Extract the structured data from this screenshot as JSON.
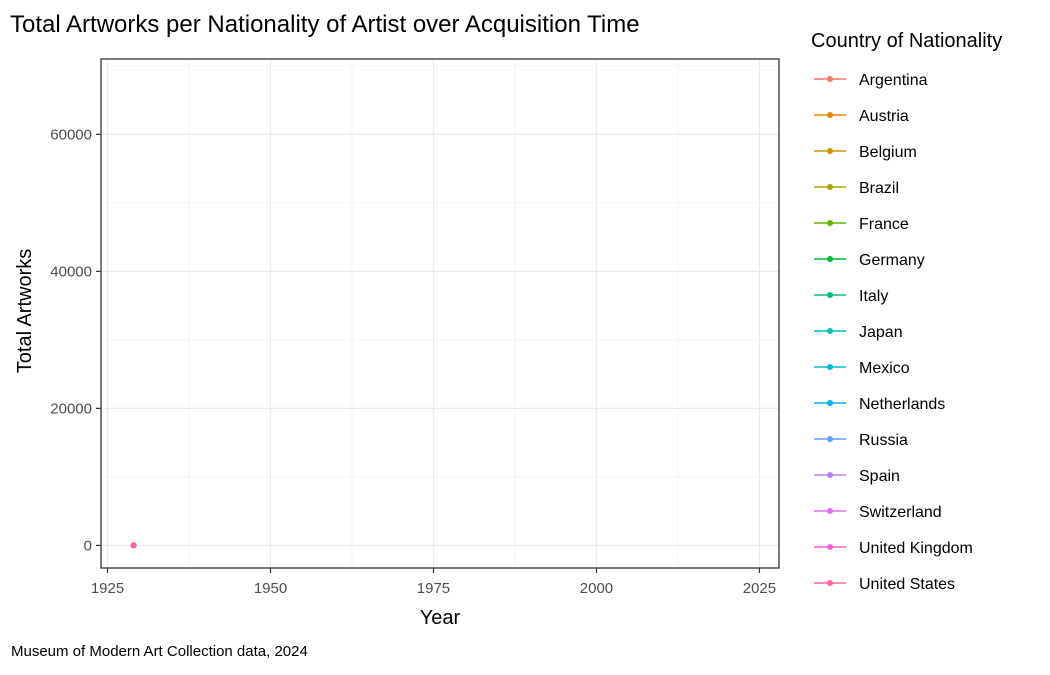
{
  "chart_data": {
    "type": "line",
    "title": "Total Artworks per Nationality of Artist over Acquisition Time",
    "xlabel": "Year",
    "ylabel": "Total Artworks",
    "caption": "Museum of Modern Art Collection data, 2024",
    "xlim": [
      1924,
      2028
    ],
    "ylim": [
      -3300,
      71000
    ],
    "x_ticks": [
      1925,
      1950,
      1975,
      2000,
      2025
    ],
    "y_ticks": [
      0,
      20000,
      40000,
      60000
    ],
    "grid": true,
    "legend": {
      "title": "Country of Nationality",
      "position": "right"
    },
    "series": [
      {
        "name": "Argentina",
        "color": "#F8766D",
        "x": [
          1929
        ],
        "y": [
          0
        ]
      },
      {
        "name": "Austria",
        "color": "#E58700",
        "x": [
          1929
        ],
        "y": [
          0
        ]
      },
      {
        "name": "Belgium",
        "color": "#C99800",
        "x": [
          1929
        ],
        "y": [
          0
        ]
      },
      {
        "name": "Brazil",
        "color": "#A3A500",
        "x": [
          1929
        ],
        "y": [
          0
        ]
      },
      {
        "name": "France",
        "color": "#6BB100",
        "x": [
          1929
        ],
        "y": [
          0
        ]
      },
      {
        "name": "Germany",
        "color": "#00BA38",
        "x": [
          1929
        ],
        "y": [
          0
        ]
      },
      {
        "name": "Italy",
        "color": "#00BF7D",
        "x": [
          1929
        ],
        "y": [
          0
        ]
      },
      {
        "name": "Japan",
        "color": "#00C0AF",
        "x": [
          1929
        ],
        "y": [
          0
        ]
      },
      {
        "name": "Mexico",
        "color": "#00BCD8",
        "x": [
          1929
        ],
        "y": [
          0
        ]
      },
      {
        "name": "Netherlands",
        "color": "#00B0F6",
        "x": [
          1929
        ],
        "y": [
          0
        ]
      },
      {
        "name": "Russia",
        "color": "#619CFF",
        "x": [
          1929
        ],
        "y": [
          0
        ]
      },
      {
        "name": "Spain",
        "color": "#B983FF",
        "x": [
          1929
        ],
        "y": [
          0
        ]
      },
      {
        "name": "Switzerland",
        "color": "#E76BF3",
        "x": [
          1929
        ],
        "y": [
          0
        ]
      },
      {
        "name": "United Kingdom",
        "color": "#FD61D1",
        "x": [
          1929
        ],
        "y": [
          0
        ]
      },
      {
        "name": "United States",
        "color": "#FF67A4",
        "x": [
          1929
        ],
        "y": [
          0
        ]
      }
    ]
  }
}
